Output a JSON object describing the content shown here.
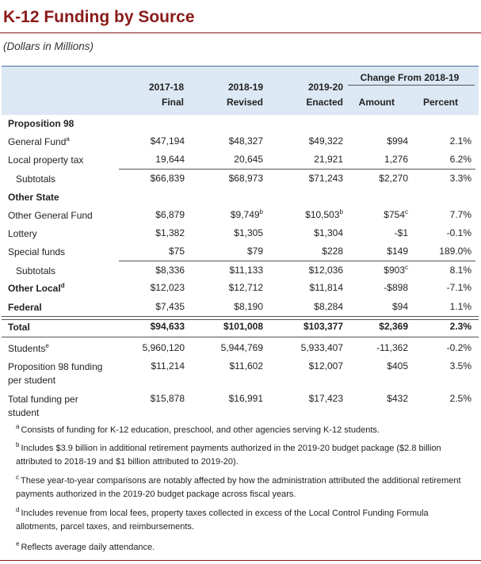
{
  "title": "K-12 Funding by Source",
  "subtitle": "(Dollars in Millions)",
  "header": {
    "change_group": "Change From 2018-19",
    "cols": [
      {
        "line1": "2017-18",
        "line2": "Final"
      },
      {
        "line1": "2018-19",
        "line2": "Revised"
      },
      {
        "line1": "2019-20",
        "line2": "Enacted"
      },
      {
        "line1": "",
        "line2": "Amount"
      },
      {
        "line1": "",
        "line2": "Percent"
      }
    ]
  },
  "rows": [
    {
      "label": "Proposition 98",
      "label_sup": "",
      "values": [
        "",
        "",
        "",
        "",
        ""
      ],
      "sups": [
        "",
        "",
        "",
        "",
        ""
      ]
    },
    {
      "label": "General Fund",
      "label_sup": "a",
      "values": [
        "$47,194",
        "$48,327",
        "$49,322",
        "$994",
        "2.1%"
      ],
      "sups": [
        "",
        "",
        "",
        "",
        ""
      ]
    },
    {
      "label": "Local property tax",
      "label_sup": "",
      "values": [
        "19,644",
        "20,645",
        "21,921",
        "1,276",
        "6.2%"
      ],
      "sups": [
        "",
        "",
        "",
        "",
        ""
      ]
    },
    {
      "label": "Subtotals",
      "label_sup": "",
      "values": [
        "$66,839",
        "$68,973",
        "$71,243",
        "$2,270",
        "3.3%"
      ],
      "sups": [
        "",
        "",
        "",
        "",
        ""
      ]
    },
    {
      "label": "Other State",
      "label_sup": "",
      "values": [
        "",
        "",
        "",
        "",
        ""
      ],
      "sups": [
        "",
        "",
        "",
        "",
        ""
      ]
    },
    {
      "label": "Other General Fund",
      "label_sup": "",
      "values": [
        "$6,879",
        "$9,749",
        "$10,503",
        "$754",
        "7.7%"
      ],
      "sups": [
        "",
        "b",
        "b",
        "c",
        ""
      ]
    },
    {
      "label": "Lottery",
      "label_sup": "",
      "values": [
        "$1,382",
        "$1,305",
        "$1,304",
        "-$1",
        "-0.1%"
      ],
      "sups": [
        "",
        "",
        "",
        "",
        ""
      ]
    },
    {
      "label": "Special funds",
      "label_sup": "",
      "values": [
        "$75",
        "$79",
        "$228",
        "$149",
        "189.0%"
      ],
      "sups": [
        "",
        "",
        "",
        "",
        ""
      ]
    },
    {
      "label": "Subtotals",
      "label_sup": "",
      "values": [
        "$8,336",
        "$11,133",
        "$12,036",
        "$903",
        "8.1%"
      ],
      "sups": [
        "",
        "",
        "",
        "c",
        ""
      ]
    },
    {
      "label": "Other Local",
      "label_sup": "d",
      "values": [
        "$12,023",
        "$12,712",
        "$11,814",
        "-$898",
        "-7.1%"
      ],
      "sups": [
        "",
        "",
        "",
        "",
        ""
      ]
    },
    {
      "label": "Federal",
      "label_sup": "",
      "values": [
        "$7,435",
        "$8,190",
        "$8,284",
        "$94",
        "1.1%"
      ],
      "sups": [
        "",
        "",
        "",
        "",
        ""
      ]
    },
    {
      "label": "Total",
      "label_sup": "",
      "values": [
        "$94,633",
        "$101,008",
        "$103,377",
        "$2,369",
        "2.3%"
      ],
      "sups": [
        "",
        "",
        "",
        "",
        ""
      ]
    },
    {
      "label": "Students",
      "label_sup": "e",
      "values": [
        "5,960,120",
        "5,944,769",
        "5,933,407",
        "-11,362",
        "-0.2%"
      ],
      "sups": [
        "",
        "",
        "",
        "",
        ""
      ]
    },
    {
      "label": "Proposition 98 funding",
      "label2": "per student",
      "label_sup": "",
      "values": [
        "$11,214",
        "$11,602",
        "$12,007",
        "$405",
        "3.5%"
      ],
      "sups": [
        "",
        "",
        "",
        "",
        ""
      ]
    },
    {
      "label": "Total funding per",
      "label2": "student",
      "label_sup": "",
      "values": [
        "$15,878",
        "$16,991",
        "$17,423",
        "$432",
        "2.5%"
      ],
      "sups": [
        "",
        "",
        "",
        "",
        ""
      ]
    }
  ],
  "footnotes": [
    {
      "mark": "a",
      "text": "Consists of funding for K-12 education, preschool, and other agencies serving K-12 students."
    },
    {
      "mark": "b",
      "text": "Includes $3.9 billion in additional retirement payments authorized in the 2019-20 budget package ($2.8 billion attributed to 2018-19 and $1 billion attributed to 2019-20)."
    },
    {
      "mark": "c",
      "text": "These year-to-year comparisons are notably affected by how the administration attributed the additional retirement payments authorized in the 2019-20 budget package across fiscal years."
    },
    {
      "mark": "d",
      "text": "Includes revenue from local fees, property taxes collected in excess of the Local Control Funding Formula allotments, parcel taxes, and reimbursements."
    },
    {
      "mark": "e",
      "text": "Reflects average daily attendance."
    }
  ]
}
